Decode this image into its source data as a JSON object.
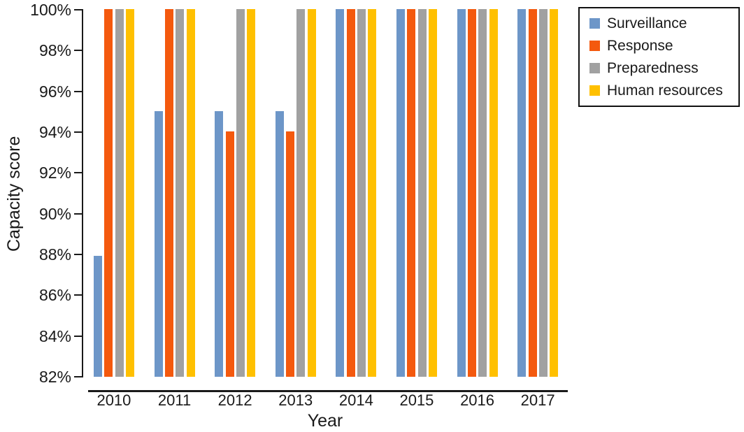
{
  "chart_data": {
    "type": "bar",
    "title": "",
    "xlabel": "Year",
    "ylabel": "Capacity score",
    "categories": [
      "2010",
      "2011",
      "2012",
      "2013",
      "2014",
      "2015",
      "2016",
      "2017"
    ],
    "series": [
      {
        "name": "Surveillance",
        "color": "#6D96C8",
        "values": [
          87.9,
          95,
          95,
          95,
          100,
          100,
          100,
          100
        ]
      },
      {
        "name": "Response",
        "color": "#F4590E",
        "values": [
          100,
          100,
          94,
          94,
          100,
          100,
          100,
          100
        ]
      },
      {
        "name": "Preparedness",
        "color": "#A1A1A1",
        "values": [
          100,
          100,
          100,
          100,
          100,
          100,
          100,
          100
        ]
      },
      {
        "name": "Human resources",
        "color": "#FFC000",
        "values": [
          100,
          100,
          100,
          100,
          100,
          100,
          100,
          100
        ]
      }
    ],
    "ylim": [
      82,
      100
    ],
    "ytick_labels": [
      "100%",
      "98%",
      "96%",
      "94%",
      "92%",
      "90%",
      "88%",
      "86%",
      "84%",
      "82%"
    ],
    "grid": false,
    "legend_position": "upper right",
    "axis_color": "#1a1a1a",
    "background_color": "#ffffff"
  }
}
